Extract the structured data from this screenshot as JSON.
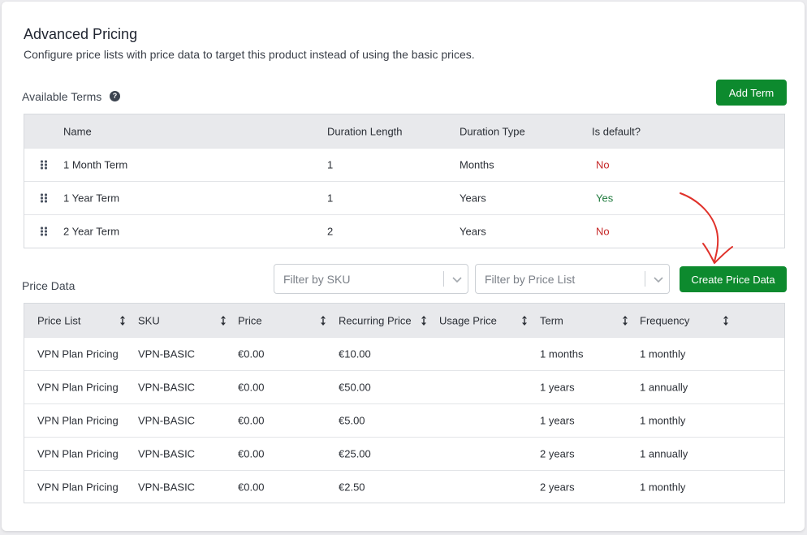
{
  "header": {
    "title": "Advanced Pricing",
    "subtitle": "Configure price lists with price data to target this product instead of using the basic prices."
  },
  "terms": {
    "label": "Available Terms",
    "help_icon": "question-circle-icon",
    "add_button": "Add Term",
    "columns": [
      "Name",
      "Duration Length",
      "Duration Type",
      "Is default?"
    ],
    "rows": [
      {
        "name": "1 Month Term",
        "length": "1",
        "type": "Months",
        "default": "No"
      },
      {
        "name": "1 Year Term",
        "length": "1",
        "type": "Years",
        "default": "Yes"
      },
      {
        "name": "2 Year Term",
        "length": "2",
        "type": "Years",
        "default": "No"
      }
    ]
  },
  "price_data": {
    "label": "Price Data",
    "filter_sku_placeholder": "Filter by SKU",
    "filter_pricelist_placeholder": "Filter by Price List",
    "create_button": "Create Price Data",
    "columns": [
      "Price List",
      "SKU",
      "Price",
      "Recurring Price",
      "Usage Price",
      "Term",
      "Frequency"
    ],
    "rows": [
      {
        "price_list": "VPN Plan Pricing",
        "sku": "VPN-BASIC",
        "price": "€0.00",
        "recurring": "€10.00",
        "usage": "",
        "term": "1 months",
        "frequency": "1 monthly"
      },
      {
        "price_list": "VPN Plan Pricing",
        "sku": "VPN-BASIC",
        "price": "€0.00",
        "recurring": "€50.00",
        "usage": "",
        "term": "1 years",
        "frequency": "1 annually"
      },
      {
        "price_list": "VPN Plan Pricing",
        "sku": "VPN-BASIC",
        "price": "€0.00",
        "recurring": "€5.00",
        "usage": "",
        "term": "1 years",
        "frequency": "1 monthly"
      },
      {
        "price_list": "VPN Plan Pricing",
        "sku": "VPN-BASIC",
        "price": "€0.00",
        "recurring": "€25.00",
        "usage": "",
        "term": "2 years",
        "frequency": "1 annually"
      },
      {
        "price_list": "VPN Plan Pricing",
        "sku": "VPN-BASIC",
        "price": "€0.00",
        "recurring": "€2.50",
        "usage": "",
        "term": "2 years",
        "frequency": "1 monthly"
      }
    ]
  },
  "colors": {
    "accent_green": "#0d8a2e",
    "no_red": "#c62828",
    "yes_green": "#1f7a3d",
    "annotation_red": "#e0322b"
  }
}
